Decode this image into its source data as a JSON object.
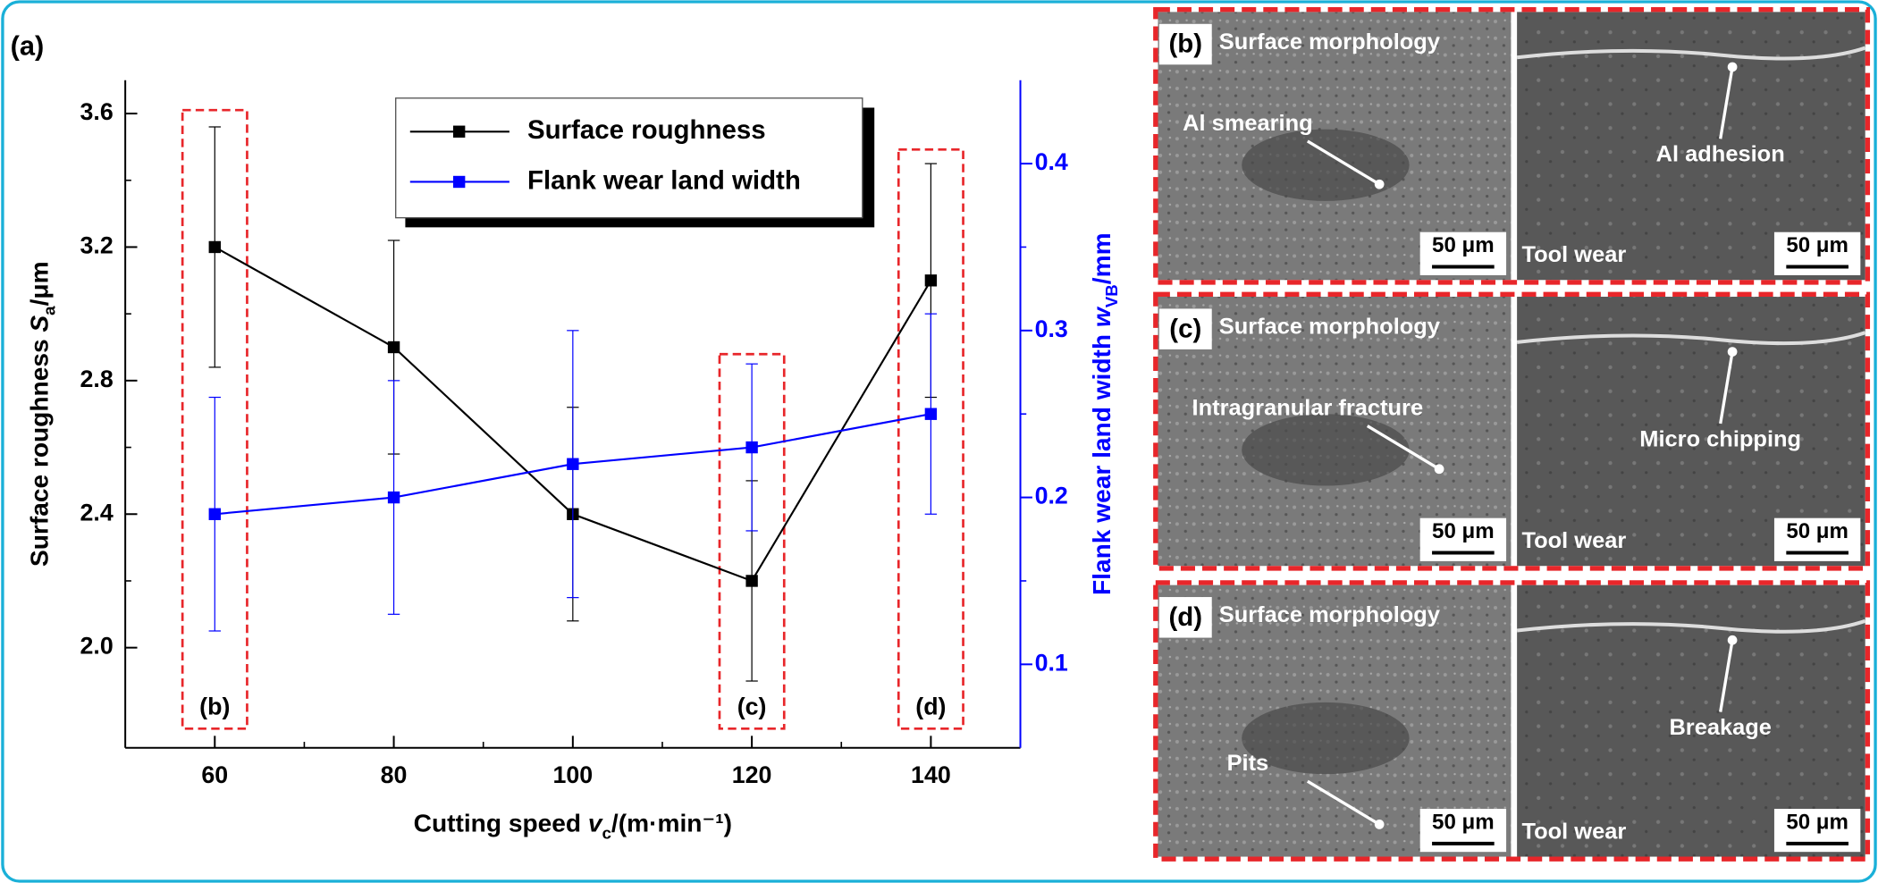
{
  "chart_data": {
    "type": "line",
    "panel_label": "(a)",
    "x": [
      60,
      80,
      100,
      120,
      140
    ],
    "xlim": [
      50,
      150
    ],
    "xticks": [
      60,
      80,
      100,
      120,
      140
    ],
    "ylim": [
      1.7,
      3.7
    ],
    "yticks": [
      {
        "value": 2,
        "label": "2.0"
      },
      2.4,
      2.8,
      3.2,
      3.6
    ],
    "y2lim": [
      0.05,
      0.45
    ],
    "y2ticks": [
      0.1,
      0.2,
      0.3,
      0.4
    ],
    "x_label": [
      "Cutting speed ",
      "v",
      "c",
      "/(m·min⁻¹)"
    ],
    "y_label": [
      "Surface roughness ",
      "S",
      "a",
      "/μm"
    ],
    "y2_label": [
      "Flank wear land width ",
      "w",
      "VB",
      "/mm"
    ],
    "series": [
      {
        "name": "Surface roughness",
        "color": "#000000",
        "values": [
          3.2,
          2.9,
          2.4,
          2.2,
          3.1
        ],
        "errors": [
          0.36,
          0.32,
          0.32,
          0.3,
          0.35
        ]
      },
      {
        "name": "Flank wear land width",
        "color": "#0000ff",
        "axis": "y2",
        "values": [
          0.19,
          0.2,
          0.22,
          0.23,
          0.25
        ],
        "errors": [
          0.07,
          0.07,
          0.08,
          0.05,
          0.06
        ]
      }
    ],
    "annotations": [
      {
        "text": "(b)",
        "x": 60
      },
      {
        "text": "(c)",
        "x": 120
      },
      {
        "text": "(d)",
        "x": 140
      }
    ]
  },
  "panels": [
    {
      "label": "(b)",
      "left_title": "Surface morphology",
      "left_note": "Al smearing",
      "left_scale": "50 μm",
      "right_title": "Tool wear",
      "right_note": "Al adhesion",
      "right_scale": "50 μm"
    },
    {
      "label": "(c)",
      "left_title": "Surface morphology",
      "left_note": "Intragranular fracture",
      "left_scale": "50 μm",
      "right_title": "Tool wear",
      "right_note": "Micro chipping",
      "right_scale": "50 μm"
    },
    {
      "label": "(d)",
      "left_title": "Surface morphology",
      "left_note": "Pits",
      "left_scale": "50 μm",
      "right_title": "Tool wear",
      "right_note": "Breakage",
      "right_scale": "50 μm"
    }
  ]
}
